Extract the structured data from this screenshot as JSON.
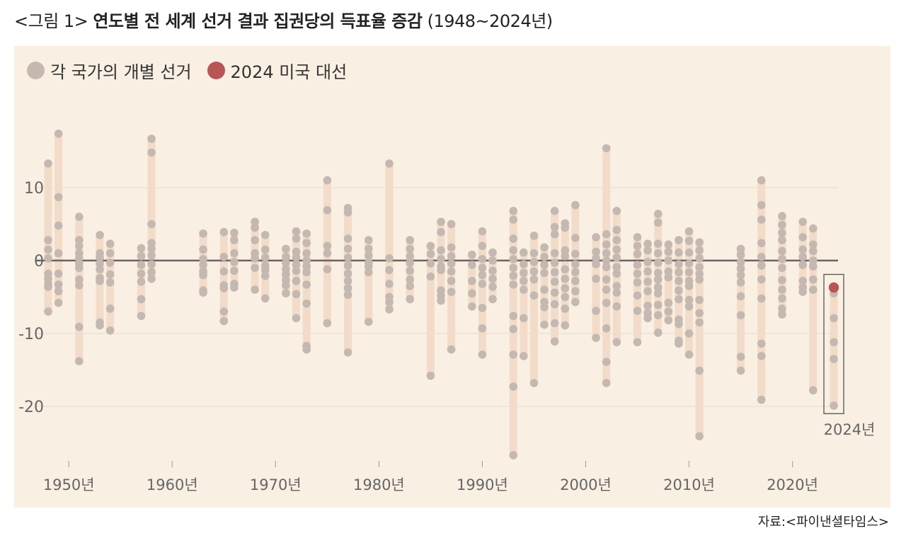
{
  "title": {
    "prefix": "<그림 1>",
    "main": "연도별 전 세계 선거 결과 집권당의 득표율 증감",
    "years": "(1948~2024년)"
  },
  "legend": [
    {
      "label": "각 국가의 개별 선거",
      "color": "#c4b8b0"
    },
    {
      "label": "2024 미국 대선",
      "color": "#b85556"
    }
  ],
  "source": "자료:<파이낸셜타임스>",
  "colors": {
    "panel_bg": "#f9efe2",
    "bar": "#f2dcc9",
    "dot": "#c4b8b0",
    "highlight": "#b85556",
    "zero_line": "#6b6361",
    "grid": "#e9dfd4",
    "tick_text": "#666666"
  },
  "chart_data": {
    "type": "scatter",
    "title": "연도별 전 세계 선거 결과 집권당의 득표율 증감",
    "xlim": [
      1947,
      2025
    ],
    "ylim": [
      -27,
      20
    ],
    "x_ticks": [
      1950,
      1960,
      1970,
      1980,
      1990,
      2000,
      2010,
      2020
    ],
    "x_tick_labels": [
      "1950년",
      "1960년",
      "1970년",
      "1980년",
      "1990년",
      "2000년",
      "2010년",
      "2020년"
    ],
    "y_ticks": [
      10,
      0,
      -10,
      -20
    ],
    "y_tick_labels": [
      "10",
      "0",
      "-10",
      "-20"
    ],
    "zero_line": true,
    "grid": true,
    "legend_position": "top-left",
    "series": [
      {
        "name": "각 국가의 개별 선거",
        "points_by_year": [
          {
            "year": 1948,
            "values": [
              13.3,
              2.8,
              1.5,
              0.3,
              -1.8,
              -2.5,
              -3.2,
              -3.6,
              -7.0
            ]
          },
          {
            "year": 1949,
            "values": [
              17.4,
              8.7,
              4.8,
              1.0,
              -1.8,
              -3.3,
              -4.2,
              -5.8
            ]
          },
          {
            "year": 1951,
            "values": [
              6.0,
              2.8,
              2.0,
              1.0,
              0.3,
              -0.4,
              -1.0,
              -2.6,
              -3.4,
              -9.1,
              -13.8
            ]
          },
          {
            "year": 1953,
            "values": [
              3.5,
              1.0,
              0.4,
              -0.4,
              -1.2,
              -2.4,
              -2.8,
              -8.5,
              -8.9
            ]
          },
          {
            "year": 1954,
            "values": [
              2.3,
              1.0,
              -0.3,
              -1.9,
              -3.0,
              -6.6,
              -9.6
            ]
          },
          {
            "year": 1957,
            "values": [
              1.7,
              0.6,
              -0.6,
              -1.8,
              -2.9,
              -5.3,
              -7.6
            ]
          },
          {
            "year": 1958,
            "values": [
              16.7,
              14.8,
              5.0,
              2.4,
              1.6,
              0.7,
              -0.5,
              -1.6,
              -2.5
            ]
          },
          {
            "year": 1963,
            "values": [
              3.7,
              1.5,
              0.2,
              -0.6,
              -1.5,
              -2.0,
              -4.1,
              -4.4
            ]
          },
          {
            "year": 1965,
            "values": [
              3.9,
              0.5,
              -1.5,
              -3.4,
              -3.8,
              -7.0,
              -8.3
            ]
          },
          {
            "year": 1966,
            "values": [
              3.8,
              2.8,
              1.0,
              -0.2,
              -1.4,
              -3.2,
              -3.7
            ]
          },
          {
            "year": 1968,
            "values": [
              5.3,
              4.5,
              2.8,
              1.0,
              0.3,
              -1.0,
              -4.0
            ]
          },
          {
            "year": 1969,
            "values": [
              3.5,
              1.5,
              0.4,
              -0.7,
              -1.3,
              -2.1,
              -5.2
            ]
          },
          {
            "year": 1971,
            "values": [
              1.6,
              0.5,
              -0.3,
              -1.2,
              -1.9,
              -2.7,
              -3.4,
              -4.5
            ]
          },
          {
            "year": 1972,
            "values": [
              4.0,
              3.0,
              1.2,
              0.4,
              -0.6,
              -1.4,
              -2.8,
              -4.6,
              -7.9
            ]
          },
          {
            "year": 1973,
            "values": [
              3.7,
              2.4,
              1.0,
              0.0,
              -0.8,
              -1.6,
              -3.3,
              -5.9,
              -11.7,
              -12.2
            ]
          },
          {
            "year": 1975,
            "values": [
              11.0,
              6.9,
              2.0,
              1.0,
              -1.2,
              -8.6
            ]
          },
          {
            "year": 1977,
            "values": [
              7.2,
              6.6,
              3.0,
              1.6,
              0.4,
              -0.7,
              -1.8,
              -2.8,
              -3.8,
              -4.7,
              -12.6
            ]
          },
          {
            "year": 1979,
            "values": [
              2.8,
              1.6,
              0.7,
              -0.3,
              -0.8,
              -1.6,
              -8.4
            ]
          },
          {
            "year": 1981,
            "values": [
              13.3,
              0.3,
              -1.3,
              -3.2,
              -5.0,
              -5.7,
              -6.7
            ]
          },
          {
            "year": 1983,
            "values": [
              2.8,
              1.6,
              0.6,
              -0.3,
              -1.4,
              -2.6,
              -3.5,
              -5.3
            ]
          },
          {
            "year": 1985,
            "values": [
              2.0,
              0.9,
              -0.4,
              -2.2,
              -15.8
            ]
          },
          {
            "year": 1986,
            "values": [
              5.3,
              3.9,
              1.4,
              0.2,
              -0.8,
              -1.3,
              -4.1,
              -4.8,
              -5.5
            ]
          },
          {
            "year": 1987,
            "values": [
              5.0,
              1.8,
              0.6,
              -0.4,
              -1.5,
              -2.8,
              -4.3,
              -12.2
            ]
          },
          {
            "year": 1989,
            "values": [
              0.8,
              -0.6,
              -2.8,
              -4.5,
              -6.3
            ]
          },
          {
            "year": 1990,
            "values": [
              4.0,
              2.0,
              0.2,
              -1.0,
              -2.0,
              -3.2,
              -6.5,
              -9.3,
              -12.9
            ]
          },
          {
            "year": 1991,
            "values": [
              1.1,
              0.0,
              -1.4,
              -2.5,
              -3.6,
              -5.3
            ]
          },
          {
            "year": 1993,
            "values": [
              6.8,
              5.6,
              3.0,
              1.4,
              0.2,
              -1.0,
              -2.1,
              -3.3,
              -7.6,
              -9.4,
              -12.9,
              -17.3,
              -26.7
            ]
          },
          {
            "year": 1994,
            "values": [
              1.1,
              -0.5,
              -1.7,
              -2.8,
              -4.0,
              -7.9,
              -13.1
            ]
          },
          {
            "year": 1995,
            "values": [
              3.4,
              1.0,
              -0.2,
              -1.5,
              -2.6,
              -4.8,
              -16.8
            ]
          },
          {
            "year": 1996,
            "values": [
              1.8,
              0.5,
              -0.6,
              -1.7,
              -4.0,
              -5.7,
              -6.4,
              -8.8
            ]
          },
          {
            "year": 1997,
            "values": [
              6.8,
              4.6,
              3.6,
              1.0,
              -0.3,
              -1.6,
              -2.9,
              -4.4,
              -6.0,
              -8.6,
              -11.1
            ]
          },
          {
            "year": 1998,
            "values": [
              5.1,
              4.5,
              1.4,
              0.6,
              -1.2,
              -2.5,
              -3.8,
              -5.0,
              -6.6,
              -8.9
            ]
          },
          {
            "year": 1999,
            "values": [
              7.6,
              3.1,
              0.9,
              -0.5,
              -1.6,
              -2.8,
              -4.2,
              -5.7
            ]
          },
          {
            "year": 2001,
            "values": [
              3.2,
              1.2,
              0.3,
              -0.5,
              -2.5,
              -6.9,
              -10.6
            ]
          },
          {
            "year": 2002,
            "values": [
              15.4,
              3.6,
              2.2,
              1.0,
              0.0,
              -0.9,
              -2.6,
              -4.0,
              -5.8,
              -9.3,
              -13.9,
              -16.8
            ]
          },
          {
            "year": 2003,
            "values": [
              6.8,
              4.2,
              2.8,
              1.5,
              0.4,
              -0.9,
              -1.8,
              -3.5,
              -4.4,
              -6.3,
              -11.2
            ]
          },
          {
            "year": 2005,
            "values": [
              3.2,
              2.0,
              0.9,
              -0.6,
              -1.8,
              -3.0,
              -4.8,
              -6.9,
              -11.2
            ]
          },
          {
            "year": 2006,
            "values": [
              2.3,
              1.4,
              -0.2,
              -1.5,
              -2.9,
              -4.2,
              -6.2,
              -7.2,
              -7.9
            ]
          },
          {
            "year": 2007,
            "values": [
              6.4,
              5.2,
              2.3,
              1.0,
              -0.3,
              -1.7,
              -2.6,
              -3.7,
              -4.5,
              -6.1,
              -7.5,
              -9.9
            ]
          },
          {
            "year": 2008,
            "values": [
              2.2,
              1.2,
              0.0,
              -1.5,
              -2.3,
              -5.8,
              -7.0,
              -8.2
            ]
          },
          {
            "year": 2009,
            "values": [
              2.8,
              1.1,
              -0.5,
              -1.6,
              -2.8,
              -4.1,
              -5.3,
              -8.1,
              -8.7,
              -11.0,
              -11.4
            ]
          },
          {
            "year": 2010,
            "values": [
              4.0,
              2.7,
              1.1,
              -0.4,
              -1.6,
              -2.8,
              -3.5,
              -5.4,
              -6.3,
              -10.0,
              -12.9
            ]
          },
          {
            "year": 2011,
            "values": [
              2.5,
              1.4,
              0.3,
              -0.9,
              -1.8,
              -2.6,
              -5.4,
              -7.2,
              -8.5,
              -15.1,
              -24.1
            ]
          },
          {
            "year": 2015,
            "values": [
              1.6,
              0.8,
              -0.2,
              -1.1,
              -2.0,
              -3.0,
              -4.9,
              -7.5,
              -13.2,
              -15.1
            ]
          },
          {
            "year": 2017,
            "values": [
              11.0,
              7.6,
              5.6,
              2.4,
              0.5,
              -0.7,
              -2.6,
              -5.2,
              -11.4,
              -13.1,
              -19.1
            ]
          },
          {
            "year": 2019,
            "values": [
              6.1,
              4.9,
              3.8,
              2.8,
              1.3,
              0.2,
              -1.0,
              -2.7,
              -4.0,
              -5.2,
              -6.6,
              -7.4
            ]
          },
          {
            "year": 2021,
            "values": [
              5.3,
              3.2,
              1.5,
              0.5,
              -0.6,
              -2.8,
              -3.7,
              -4.3
            ]
          },
          {
            "year": 2022,
            "values": [
              4.4,
              2.2,
              1.3,
              0.0,
              -0.8,
              -2.6,
              -4.0,
              -17.8
            ]
          },
          {
            "year": 2024,
            "values": [
              -4.5,
              -7.9,
              -11.2,
              -13.5,
              -19.9
            ]
          }
        ]
      },
      {
        "name": "2024 미국 대선",
        "points": [
          {
            "year": 2024,
            "value": -3.7
          }
        ]
      }
    ],
    "annotation": {
      "text": "2024년",
      "year": 2024
    }
  }
}
